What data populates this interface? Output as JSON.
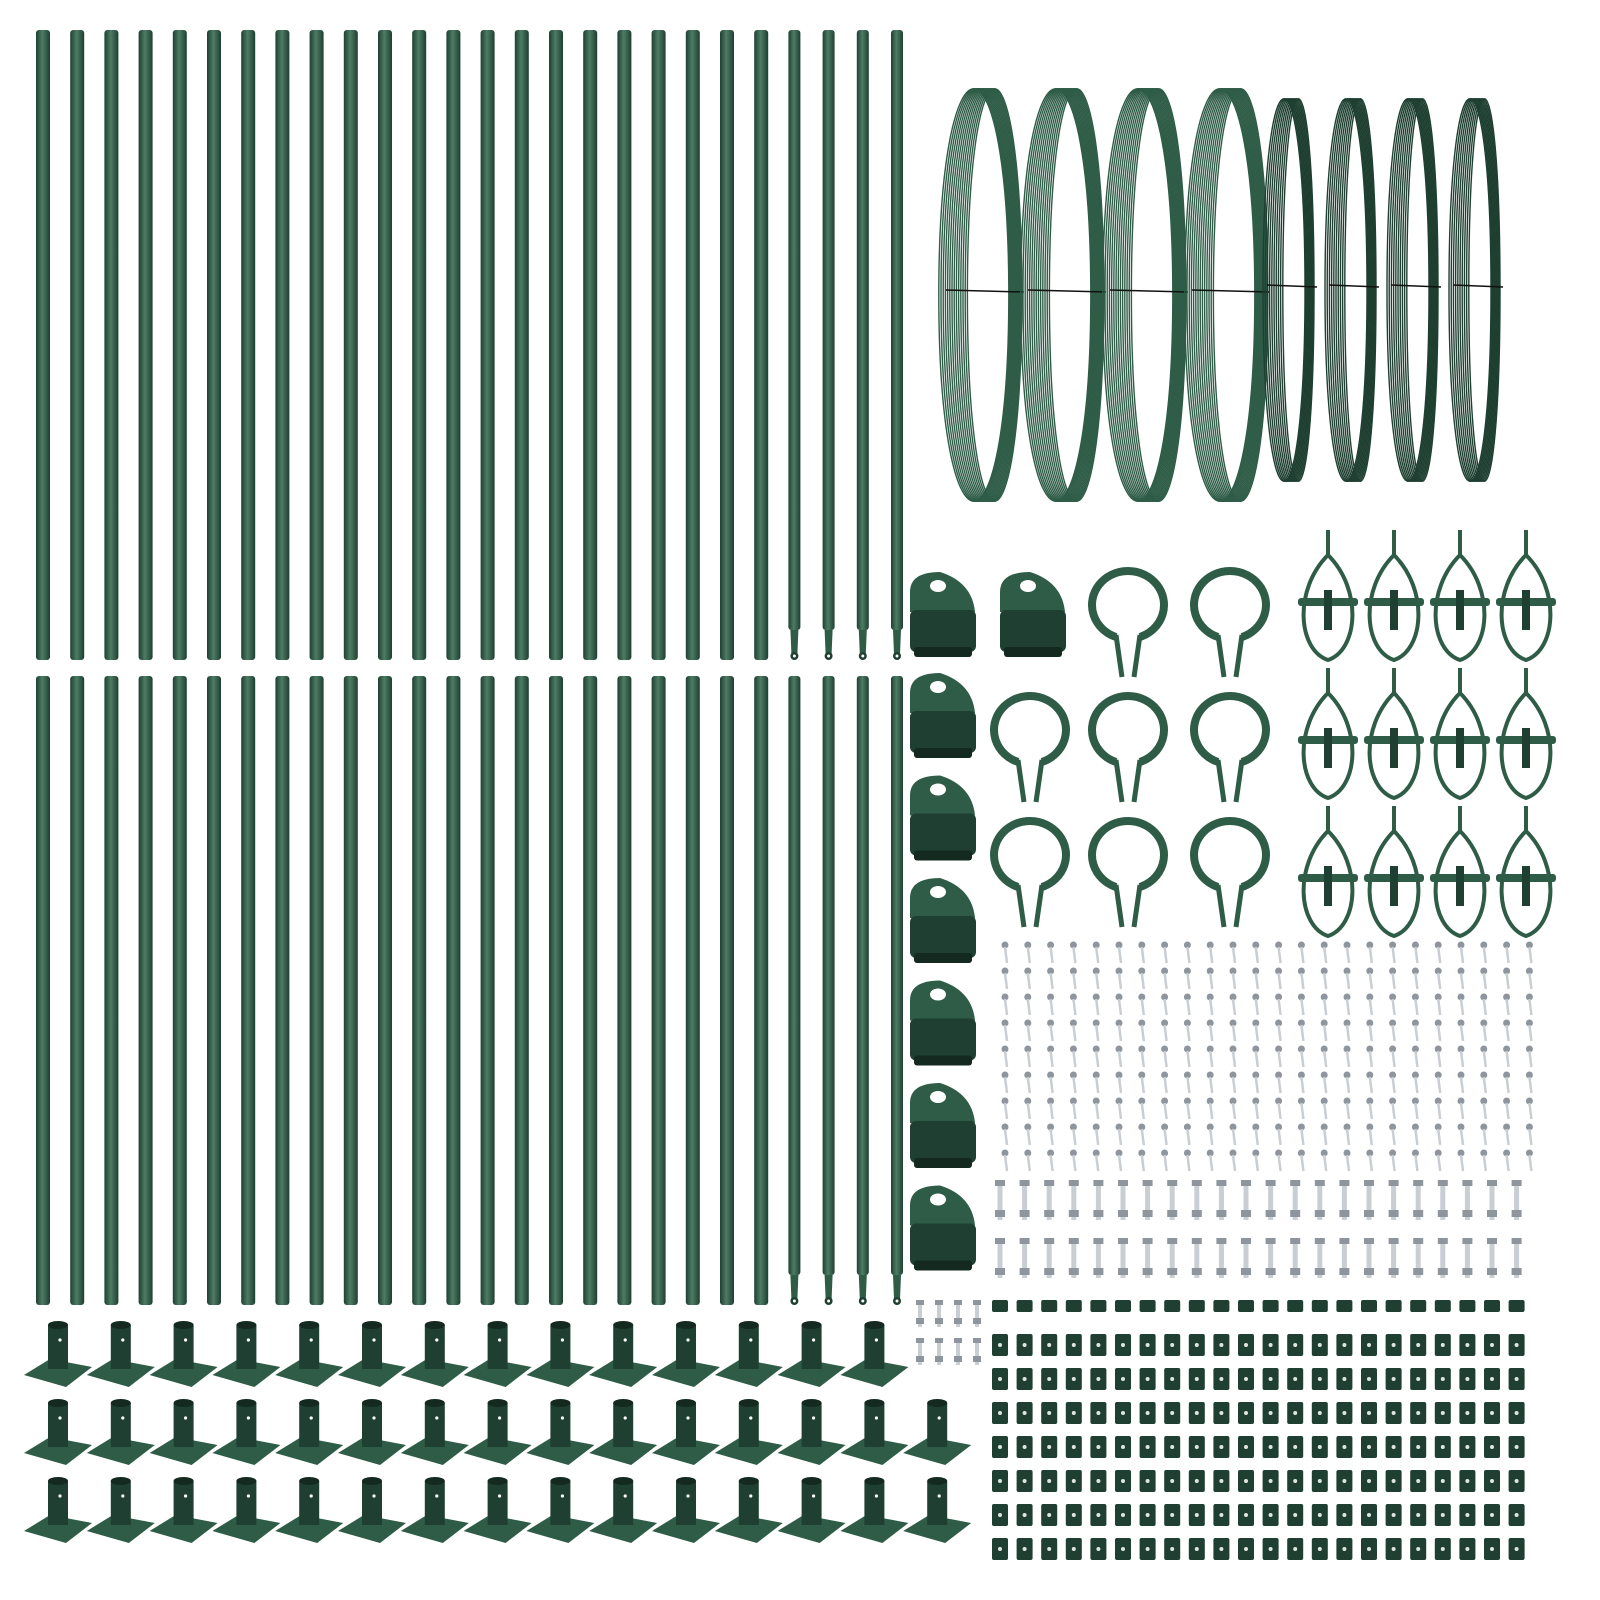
{
  "product": {
    "colors": {
      "green": "#2e5c47",
      "green_dark": "#1e3f31",
      "green_light": "#4d7c65",
      "metal": "#c9ced3",
      "metal_dark": "#8e959c",
      "background": "#ffffff"
    },
    "parts": {
      "straight_poles": 44,
      "eye_end_rods": 8,
      "large_wire_coils": 4,
      "small_wire_coils": 4,
      "post_caps": 8,
      "post_clamps": 8,
      "tensioners": 12,
      "screws": 216,
      "bolts": 44,
      "small_bolts": 8,
      "spacers": 176,
      "base_plates": 44
    }
  }
}
